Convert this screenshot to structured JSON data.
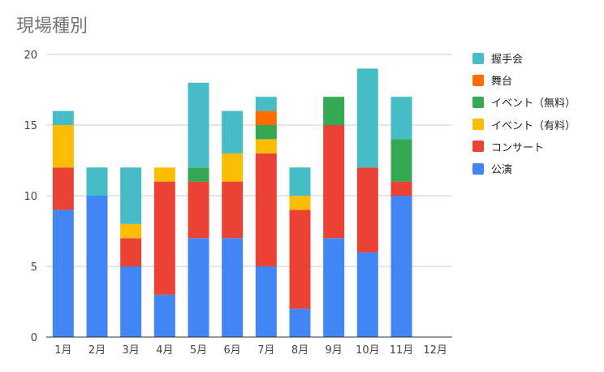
{
  "title": "現場種別",
  "chart_data": {
    "type": "bar",
    "stacked": true,
    "title": "現場種別",
    "categories": [
      "1月",
      "2月",
      "3月",
      "4月",
      "5月",
      "6月",
      "7月",
      "8月",
      "9月",
      "10月",
      "11月",
      "12月"
    ],
    "series": [
      {
        "name": "公演",
        "color": "#4285f4",
        "values": [
          9,
          10,
          5,
          3,
          7,
          7,
          5,
          2,
          7,
          6,
          10,
          0
        ]
      },
      {
        "name": "コンサート",
        "color": "#ea4335",
        "values": [
          3,
          0,
          2,
          8,
          4,
          4,
          8,
          7,
          8,
          6,
          1,
          0
        ]
      },
      {
        "name": "イベント（有料）",
        "color": "#fbbc04",
        "values": [
          3,
          0,
          1,
          1,
          0,
          2,
          1,
          1,
          0,
          0,
          0,
          0
        ]
      },
      {
        "name": "イベント（無料）",
        "color": "#34a853",
        "values": [
          0,
          0,
          0,
          0,
          1,
          0,
          1,
          0,
          2,
          0,
          3,
          0
        ]
      },
      {
        "name": "舞台",
        "color": "#ff6d01",
        "values": [
          0,
          0,
          0,
          0,
          0,
          0,
          1,
          0,
          0,
          0,
          0,
          0
        ]
      },
      {
        "name": "握手会",
        "color": "#46bdc6",
        "values": [
          1,
          2,
          4,
          0,
          6,
          3,
          1,
          2,
          0,
          7,
          3,
          0
        ]
      }
    ],
    "yticks": [
      0,
      5,
      10,
      15,
      20
    ],
    "ylim": [
      0,
      20
    ],
    "legend_position": "right",
    "legend_order": [
      "握手会",
      "舞台",
      "イベント（無料）",
      "イベント（有料）",
      "コンサート",
      "公演"
    ],
    "grid": true
  }
}
